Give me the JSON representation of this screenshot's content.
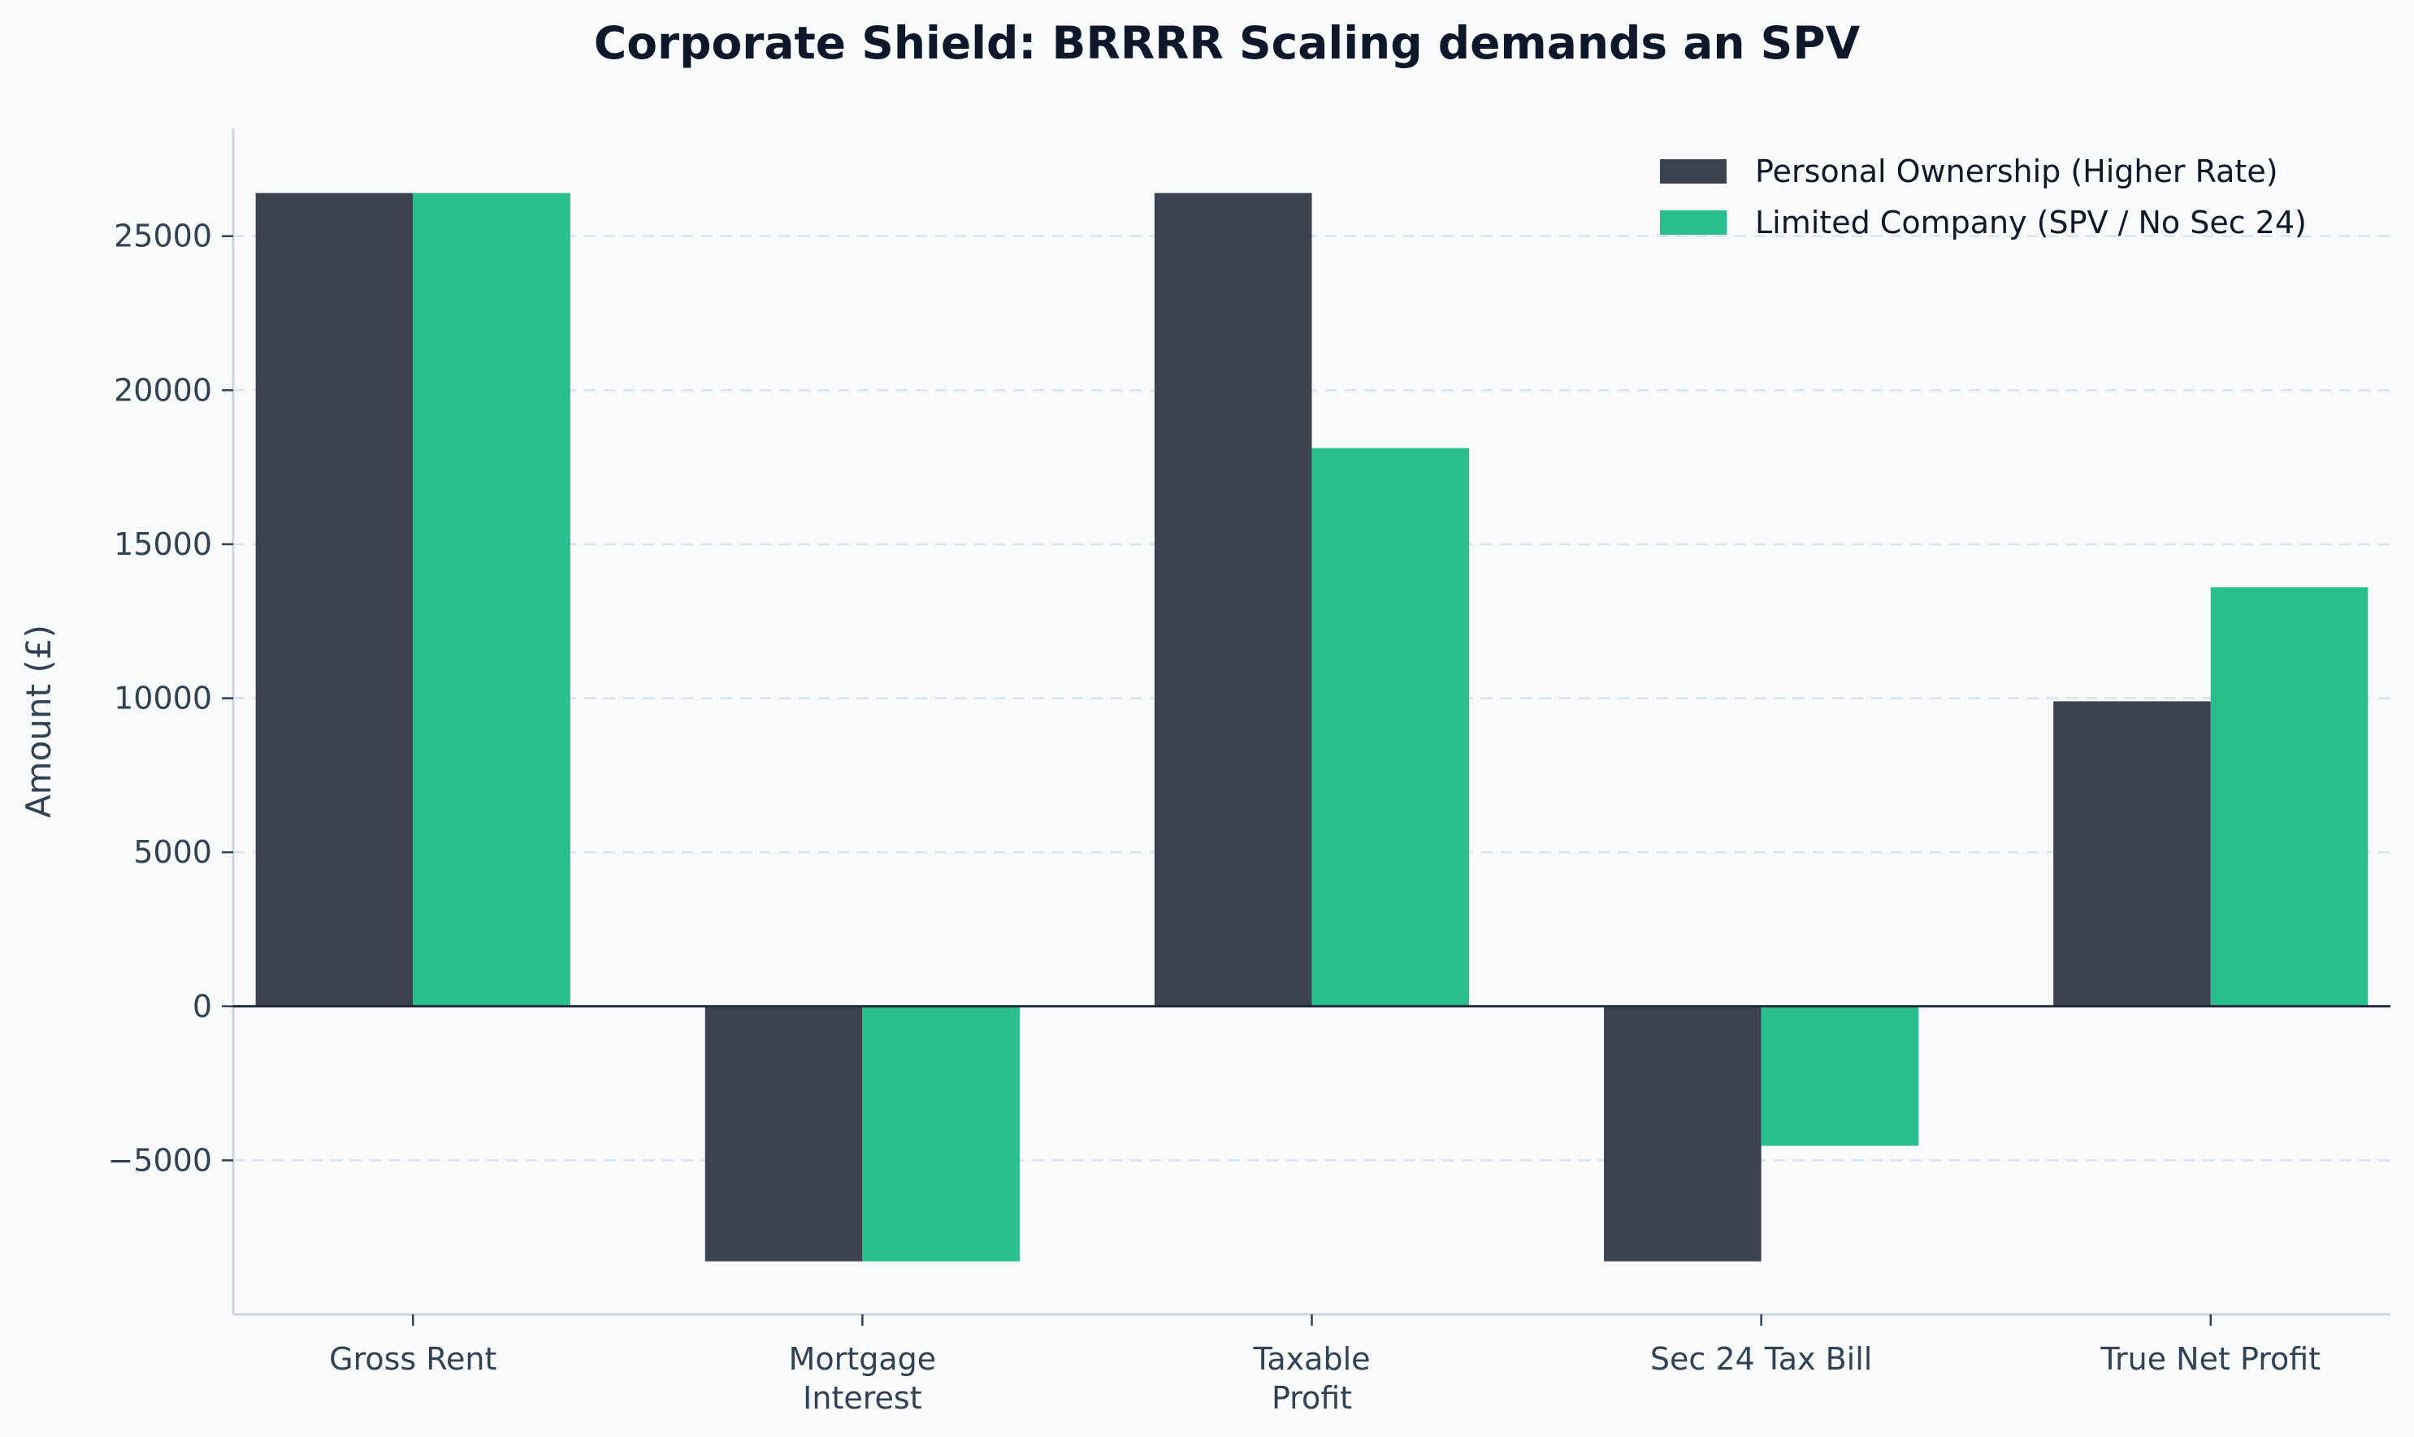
{
  "chart_data": {
    "type": "bar",
    "title": "Corporate Shield: BRRRR Scaling demands an SPV",
    "xlabel": "",
    "ylabel": "Amount (£)",
    "categories": [
      "Gross Rent",
      "Mortgage\nInterest",
      "Taxable\nProfit",
      "Sec 24 Tax Bill",
      "True Net Profit"
    ],
    "series": [
      {
        "name": "Personal Ownership (Higher Rate)",
        "color": "#3d4251",
        "values": [
          26400,
          -8280,
          26400,
          -8280,
          9900
        ]
      },
      {
        "name": "Limited Company (SPV / No Sec 24)",
        "color": "#28bf8c",
        "values": [
          26400,
          -8280,
          18120,
          -4530,
          13600
        ]
      }
    ],
    "ylim": [
      -10000,
      28500
    ],
    "yticks": [
      -5000,
      0,
      5000,
      10000,
      15000,
      20000,
      25000
    ],
    "ytick_labels": [
      "−5000",
      "0",
      "5000",
      "10000",
      "15000",
      "20000",
      "25000"
    ],
    "grid": true,
    "legend_position": "top-right"
  }
}
